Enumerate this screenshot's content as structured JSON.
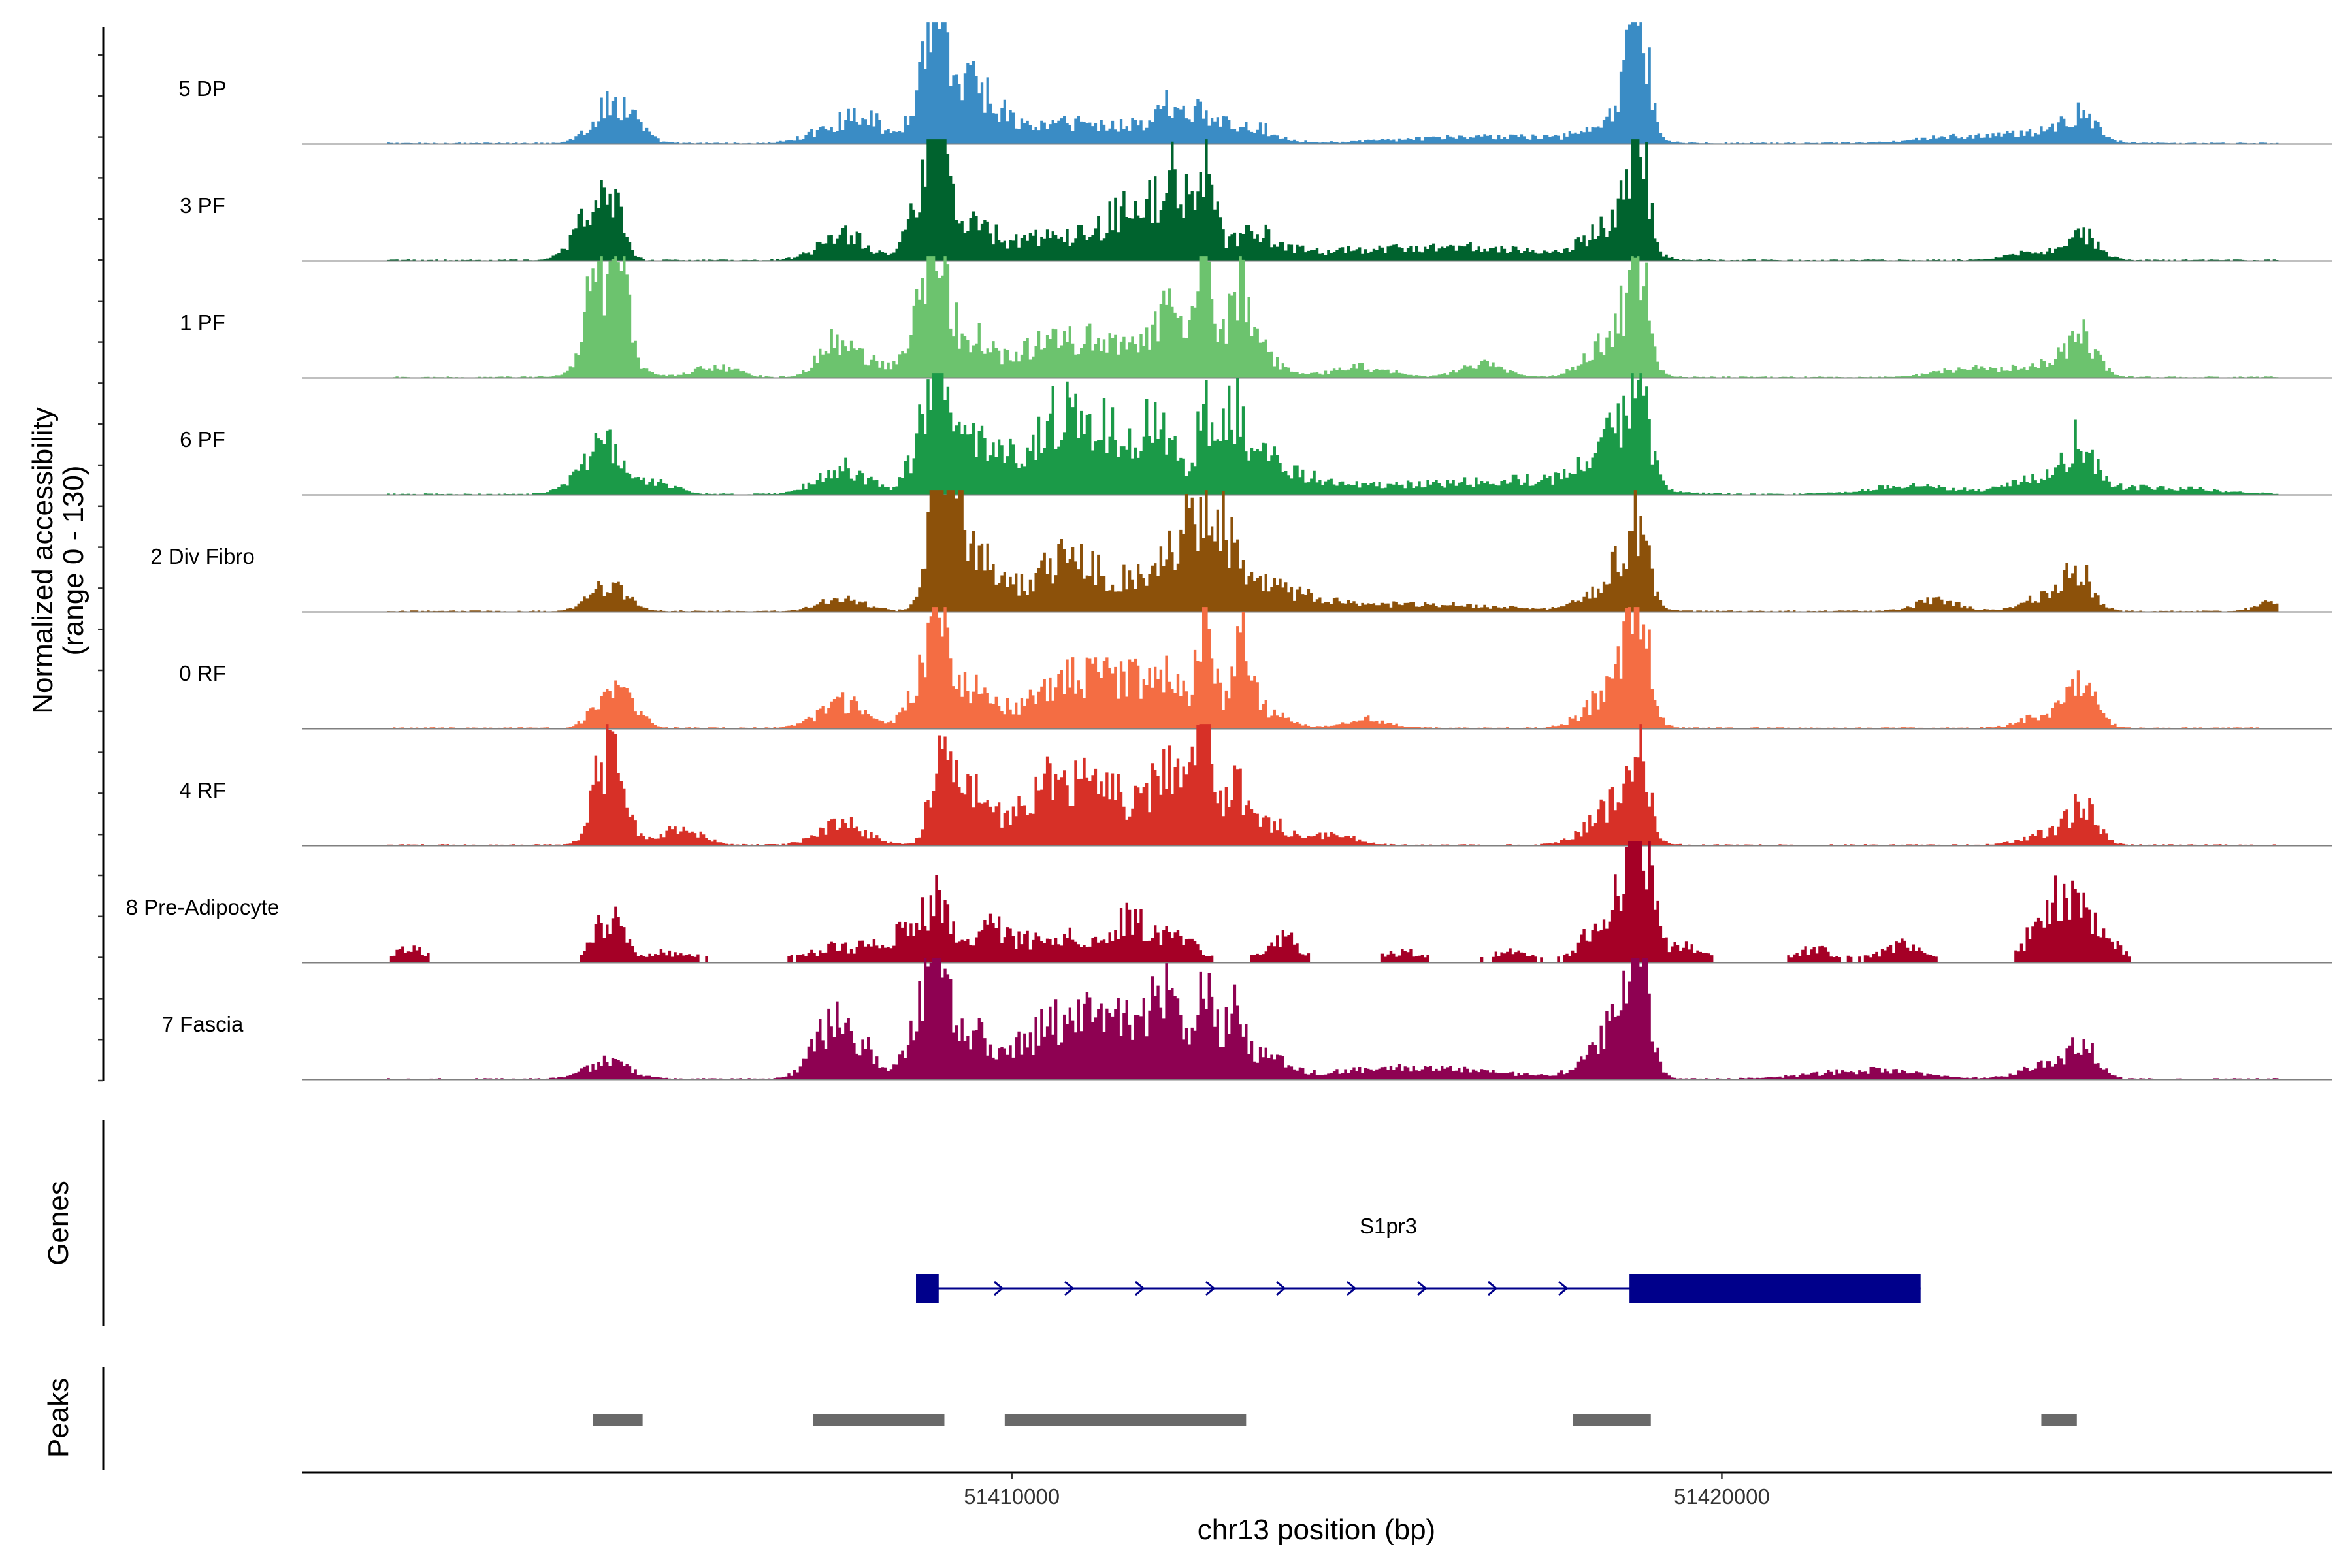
{
  "chart_data": {
    "type": "area",
    "title": "",
    "xlabel": "chr13 position (bp)",
    "ylabel_lines": [
      "Normalized accessibility",
      "(range 0 - 130)"
    ],
    "y_range": [
      0,
      130
    ],
    "x_range": [
      51400000,
      51428600
    ],
    "x_ticks": [
      {
        "value": 51410000,
        "label": "51410000"
      },
      {
        "value": 51420000,
        "label": "51420000"
      }
    ],
    "panel_titles": {
      "genes": "Genes",
      "peaks": "Peaks"
    },
    "tracks": [
      {
        "name": "5 DP",
        "color": "#3A8CC5",
        "sparse": false,
        "peaks": [
          [
            51404300,
            35,
            260
          ],
          [
            51404560,
            22,
            220
          ],
          [
            51407400,
            15,
            320
          ],
          [
            51407900,
            30,
            260
          ],
          [
            51408950,
            128,
            130
          ],
          [
            51408750,
            75,
            170
          ],
          [
            51409300,
            60,
            200
          ],
          [
            51409650,
            40,
            240
          ],
          [
            51410300,
            18,
            400
          ],
          [
            51411000,
            20,
            320
          ],
          [
            51411700,
            22,
            260
          ],
          [
            51412200,
            30,
            160
          ],
          [
            51412600,
            35,
            300
          ],
          [
            51413400,
            18,
            300
          ],
          [
            51416800,
            8,
            1200
          ],
          [
            51418250,
            12,
            300
          ],
          [
            51418820,
            120,
            120
          ],
          [
            51418700,
            55,
            200
          ],
          [
            51425050,
            30,
            220
          ],
          [
            51424500,
            12,
            400
          ],
          [
            51423400,
            8,
            600
          ]
        ]
      },
      {
        "name": "3 PF",
        "color": "#00632E",
        "sparse": false,
        "peaks": [
          [
            51404000,
            45,
            220
          ],
          [
            51404350,
            70,
            150
          ],
          [
            51407600,
            30,
            320
          ],
          [
            51408950,
            125,
            130
          ],
          [
            51408750,
            80,
            200
          ],
          [
            51409400,
            50,
            240
          ],
          [
            51410300,
            25,
            500
          ],
          [
            51411200,
            25,
            320
          ],
          [
            51411700,
            35,
            300
          ],
          [
            51412000,
            40,
            300
          ],
          [
            51412300,
            70,
            160
          ],
          [
            51412700,
            115,
            120
          ],
          [
            51413400,
            25,
            320
          ],
          [
            51414300,
            8,
            1500
          ],
          [
            51416500,
            12,
            1200
          ],
          [
            51418250,
            20,
            300
          ],
          [
            51418820,
            110,
            130
          ],
          [
            51418600,
            40,
            250
          ],
          [
            51425050,
            28,
            220
          ],
          [
            51424500,
            10,
            400
          ]
        ]
      },
      {
        "name": "1 PF",
        "color": "#6CC36E",
        "sparse": false,
        "peaks": [
          [
            51404100,
            95,
            130
          ],
          [
            51404450,
            100,
            120
          ],
          [
            51404300,
            40,
            300
          ],
          [
            51405800,
            12,
            300
          ],
          [
            51407450,
            35,
            220
          ],
          [
            51407900,
            20,
            300
          ],
          [
            51408950,
            140,
            130
          ],
          [
            51408750,
            80,
            200
          ],
          [
            51409400,
            45,
            260
          ],
          [
            51410300,
            30,
            400
          ],
          [
            51411000,
            35,
            380
          ],
          [
            51411700,
            35,
            350
          ],
          [
            51412200,
            60,
            200
          ],
          [
            51412700,
            125,
            120
          ],
          [
            51413200,
            95,
            150
          ],
          [
            51413400,
            30,
            300
          ],
          [
            51414900,
            12,
            400
          ],
          [
            51416600,
            15,
            300
          ],
          [
            51418250,
            20,
            300
          ],
          [
            51418820,
            115,
            130
          ],
          [
            51418600,
            50,
            250
          ],
          [
            51425050,
            45,
            200
          ],
          [
            51424500,
            15,
            400
          ],
          [
            51423400,
            10,
            400
          ]
        ]
      },
      {
        "name": "6 PF",
        "color": "#1B9A48",
        "sparse": false,
        "peaks": [
          [
            51404000,
            30,
            250
          ],
          [
            51404350,
            40,
            220
          ],
          [
            51404900,
            15,
            300
          ],
          [
            51407600,
            30,
            350
          ],
          [
            51408950,
            120,
            130
          ],
          [
            51408750,
            65,
            200
          ],
          [
            51409400,
            45,
            300
          ],
          [
            51410300,
            40,
            600
          ],
          [
            51410700,
            50,
            320
          ],
          [
            51411200,
            45,
            350
          ],
          [
            51411700,
            45,
            300
          ],
          [
            51412100,
            65,
            200
          ],
          [
            51412700,
            100,
            120
          ],
          [
            51413100,
            75,
            150
          ],
          [
            51413400,
            30,
            300
          ],
          [
            51413900,
            18,
            400
          ],
          [
            51415500,
            10,
            1500
          ],
          [
            51417500,
            12,
            900
          ],
          [
            51418250,
            25,
            300
          ],
          [
            51418820,
            110,
            130
          ],
          [
            51418600,
            60,
            250
          ],
          [
            51425050,
            55,
            200
          ],
          [
            51424500,
            18,
            400
          ],
          [
            51422700,
            10,
            600
          ],
          [
            51426000,
            8,
            800
          ]
        ]
      },
      {
        "name": "2 Div Fibro",
        "color": "#8C510A",
        "sparse": false,
        "peaks": [
          [
            51404300,
            30,
            250
          ],
          [
            51407600,
            15,
            300
          ],
          [
            51408950,
            150,
            130
          ],
          [
            51409100,
            80,
            220
          ],
          [
            51409400,
            50,
            300
          ],
          [
            51409800,
            20,
            250
          ],
          [
            51410800,
            45,
            300
          ],
          [
            51410400,
            25,
            300
          ],
          [
            51411300,
            25,
            350
          ],
          [
            51412000,
            35,
            400
          ],
          [
            51412400,
            65,
            200
          ],
          [
            51412700,
            70,
            160
          ],
          [
            51413000,
            70,
            150
          ],
          [
            51413400,
            25,
            300
          ],
          [
            51414000,
            15,
            400
          ],
          [
            51415600,
            8,
            1200
          ],
          [
            51418250,
            15,
            300
          ],
          [
            51418820,
            85,
            130
          ],
          [
            51418600,
            45,
            250
          ],
          [
            51425000,
            45,
            200
          ],
          [
            51424500,
            15,
            300
          ],
          [
            51423000,
            12,
            300
          ],
          [
            51427800,
            10,
            250
          ]
        ]
      },
      {
        "name": "0 RF",
        "color": "#F46D43",
        "sparse": false,
        "peaks": [
          [
            51404300,
            35,
            220
          ],
          [
            51404550,
            20,
            220
          ],
          [
            51407600,
            30,
            320
          ],
          [
            51408950,
            110,
            130
          ],
          [
            51408750,
            60,
            200
          ],
          [
            51409350,
            45,
            300
          ],
          [
            51410300,
            25,
            400
          ],
          [
            51410800,
            40,
            320
          ],
          [
            51411300,
            30,
            350
          ],
          [
            51411700,
            40,
            300
          ],
          [
            51412200,
            55,
            200
          ],
          [
            51412700,
            115,
            120
          ],
          [
            51413200,
            85,
            150
          ],
          [
            51413500,
            20,
            320
          ],
          [
            51415000,
            10,
            300
          ],
          [
            51418250,
            20,
            300
          ],
          [
            51418820,
            110,
            130
          ],
          [
            51418600,
            60,
            250
          ],
          [
            51425050,
            50,
            200
          ],
          [
            51424500,
            15,
            300
          ]
        ]
      },
      {
        "name": "4 RF",
        "color": "#D73027",
        "sparse": false,
        "peaks": [
          [
            51404200,
            85,
            150
          ],
          [
            51404450,
            80,
            140
          ],
          [
            51405300,
            18,
            300
          ],
          [
            51407600,
            25,
            320
          ],
          [
            51408950,
            90,
            130
          ],
          [
            51409250,
            50,
            220
          ],
          [
            51409600,
            40,
            220
          ],
          [
            51410300,
            40,
            300
          ],
          [
            51410700,
            55,
            300
          ],
          [
            51411200,
            45,
            300
          ],
          [
            51411700,
            35,
            300
          ],
          [
            51412100,
            60,
            200
          ],
          [
            51412400,
            80,
            160
          ],
          [
            51412700,
            120,
            120
          ],
          [
            51413100,
            70,
            150
          ],
          [
            51413600,
            25,
            300
          ],
          [
            51414500,
            12,
            300
          ],
          [
            51418250,
            20,
            300
          ],
          [
            51418820,
            85,
            130
          ],
          [
            51418600,
            45,
            250
          ],
          [
            51425050,
            45,
            200
          ],
          [
            51424500,
            12,
            300
          ]
        ]
      },
      {
        "name": "8 Pre-Adipocyte",
        "color": "#A50026",
        "sparse": true,
        "peaks": [
          [
            51401500,
            15,
            250
          ],
          [
            51404300,
            55,
            200
          ],
          [
            51405200,
            12,
            400
          ],
          [
            51407600,
            18,
            500
          ],
          [
            51408950,
            65,
            200
          ],
          [
            51408500,
            30,
            300
          ],
          [
            51409700,
            40,
            250
          ],
          [
            51410600,
            35,
            400
          ],
          [
            51411600,
            50,
            300
          ],
          [
            51412300,
            25,
            300
          ],
          [
            51413800,
            30,
            250
          ],
          [
            51415500,
            12,
            300
          ],
          [
            51417000,
            12,
            300
          ],
          [
            51418300,
            35,
            300
          ],
          [
            51418820,
            150,
            150
          ],
          [
            51418600,
            50,
            250
          ],
          [
            51419400,
            20,
            300
          ],
          [
            51421300,
            15,
            300
          ],
          [
            51422500,
            20,
            300
          ],
          [
            51424600,
            55,
            250
          ],
          [
            51424900,
            40,
            300
          ],
          [
            51425300,
            25,
            250
          ]
        ]
      },
      {
        "name": "7 Fascia",
        "color": "#8E0152",
        "sparse": false,
        "peaks": [
          [
            51404300,
            20,
            300
          ],
          [
            51407400,
            50,
            250
          ],
          [
            51407800,
            35,
            300
          ],
          [
            51408950,
            115,
            130
          ],
          [
            51408750,
            70,
            200
          ],
          [
            51409400,
            50,
            300
          ],
          [
            51410300,
            40,
            400
          ],
          [
            51410800,
            45,
            300
          ],
          [
            51411300,
            40,
            350
          ],
          [
            51411800,
            50,
            300
          ],
          [
            51412200,
            75,
            200
          ],
          [
            51412700,
            125,
            120
          ],
          [
            51413100,
            70,
            150
          ],
          [
            51413500,
            25,
            300
          ],
          [
            51415600,
            12,
            1200
          ],
          [
            51418250,
            20,
            300
          ],
          [
            51418820,
            120,
            130
          ],
          [
            51418600,
            70,
            250
          ],
          [
            51425050,
            40,
            200
          ],
          [
            51424500,
            15,
            300
          ],
          [
            51422000,
            10,
            700
          ]
        ]
      }
    ],
    "gene": {
      "name": "S1pr3",
      "start": 51408650,
      "end": 51422800,
      "strand": "+",
      "exons": [
        [
          51408650,
          51408970
        ],
        [
          51418700,
          51422800
        ]
      ],
      "color": "#00008B"
    },
    "peak_regions": [
      [
        51404100,
        51404800
      ],
      [
        51407200,
        51409050
      ],
      [
        51409900,
        51413300
      ],
      [
        51417900,
        51419000
      ],
      [
        51424500,
        51425000
      ]
    ],
    "peak_color": "#696969"
  }
}
